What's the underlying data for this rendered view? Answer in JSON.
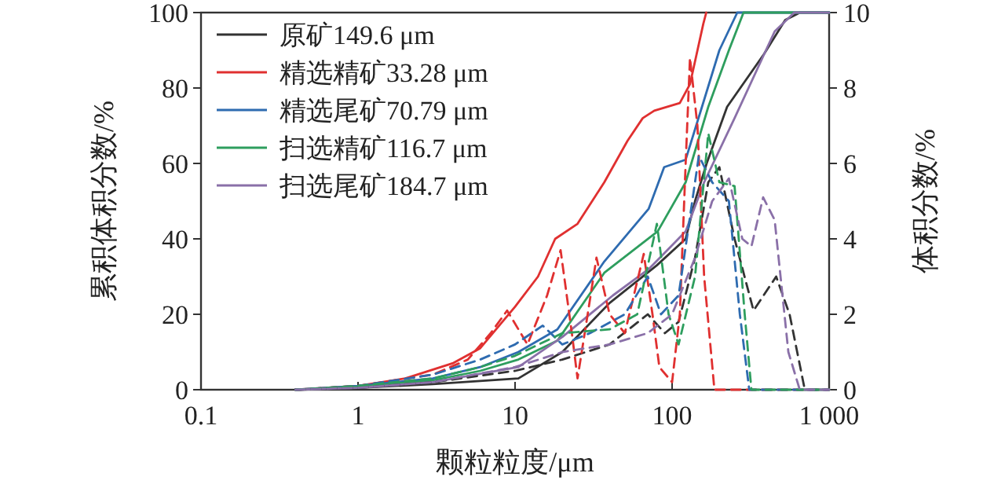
{
  "chart_data": {
    "type": "line",
    "xlabel": "颗粒粒度/μm",
    "ylabel": "累积体积分数/%",
    "y2label": "体积分数/%",
    "log": "x",
    "xlim": [
      0.1,
      1000
    ],
    "xticks": [
      0.1,
      1,
      10,
      100,
      {
        "value": 1000,
        "label": "1 000"
      }
    ],
    "ylim": [
      0,
      100
    ],
    "yticks": [
      0,
      20,
      40,
      60,
      80,
      100
    ],
    "y2lim": [
      0,
      10
    ],
    "y2ticks": [
      0,
      2,
      4,
      6,
      8,
      10
    ],
    "grid": false,
    "legend": "top left",
    "marker": "none",
    "series": [
      {
        "name": "原矿149.6 μm",
        "color": "#333333",
        "line_style": "solid",
        "x": [
          0.4,
          1,
          3,
          10.5,
          20,
          40,
          80,
          122,
          140,
          166,
          224,
          385,
          525,
          650,
          1000
        ],
        "values": [
          0,
          0.5,
          1.5,
          3,
          10,
          23,
          33,
          40,
          50,
          60,
          75,
          89,
          98,
          100,
          100
        ]
      },
      {
        "name": "精选精矿33.28 μm",
        "color": "#e03030",
        "line_style": "solid",
        "x": [
          0.4,
          1,
          2,
          4,
          6,
          10,
          14,
          18,
          25,
          37,
          52,
          65,
          77,
          112,
          130,
          158,
          165
        ],
        "values": [
          0,
          1,
          3,
          7,
          11,
          22,
          30,
          40,
          44,
          55,
          66,
          72,
          74,
          76,
          81,
          97,
          100
        ]
      },
      {
        "name": "精选尾矿70.79 μm",
        "color": "#2e6bb0",
        "line_style": "solid",
        "x": [
          0.4,
          1,
          3,
          6,
          10.5,
          18.6,
          37,
          71,
          89,
          122,
          155,
          200,
          260,
          1000
        ],
        "values": [
          0,
          1,
          3,
          6,
          10,
          16,
          34,
          48,
          59,
          61,
          75,
          90,
          100,
          100
        ]
      },
      {
        "name": "扫选精矿116.7 μm",
        "color": "#2e9e5e",
        "line_style": "solid",
        "x": [
          0.4,
          1,
          3,
          6,
          10.5,
          18.6,
          37,
          81,
          122,
          170,
          230,
          285,
          1000
        ],
        "values": [
          0,
          0.8,
          2.5,
          5,
          8,
          13,
          31,
          42,
          55,
          75,
          90,
          100,
          100
        ]
      },
      {
        "name": "扫选尾矿184.7 μm",
        "color": "#8a70a8",
        "line_style": "solid",
        "x": [
          0.4,
          1,
          3,
          10.5,
          20,
          42,
          71,
          122,
          160,
          250,
          450,
          600,
          1000
        ],
        "values": [
          0,
          0.5,
          2,
          6,
          14,
          25,
          32,
          42,
          55,
          72,
          95,
          100,
          100
        ]
      },
      {
        "color": "#333333",
        "line_style": "dashed",
        "axis": "y2",
        "x": [
          0.4,
          1,
          3,
          10,
          20,
          40,
          70,
          90,
          110,
          140,
          170,
          200,
          250,
          330,
          460,
          560,
          700,
          1000
        ],
        "values": [
          0,
          0.05,
          0.2,
          0.5,
          0.8,
          1.2,
          2.0,
          1.5,
          1.8,
          3.5,
          5.5,
          5.9,
          4,
          2.1,
          3.0,
          2,
          0,
          0
        ]
      },
      {
        "color": "#e03030",
        "line_style": "dashed",
        "axis": "y2",
        "x": [
          0.4,
          1,
          3,
          5,
          7,
          8.9,
          12,
          16,
          19.5,
          23,
          25,
          29,
          33,
          40,
          50,
          66,
          75,
          83,
          100,
          112,
          122,
          130,
          145,
          160,
          186,
          1000
        ],
        "values": [
          0,
          0.1,
          0.4,
          0.8,
          1.5,
          2.1,
          1.2,
          2.5,
          3.7,
          1.5,
          0.3,
          2,
          3.5,
          2,
          1.5,
          3.6,
          2,
          0.6,
          0.2,
          2,
          6,
          8.8,
          7,
          3,
          0,
          0
        ]
      },
      {
        "color": "#2e6bb0",
        "line_style": "dashed",
        "axis": "y2",
        "x": [
          0.4,
          1,
          3,
          6,
          10,
          15,
          20,
          30,
          50,
          70,
          85,
          110,
          148,
          180,
          230,
          270,
          310,
          1000
        ],
        "values": [
          0,
          0.1,
          0.4,
          0.8,
          1.2,
          1.7,
          1.2,
          1.5,
          2.0,
          3.0,
          2.0,
          2.5,
          6.2,
          5.5,
          5.0,
          2,
          0,
          0
        ]
      },
      {
        "color": "#2e9e5e",
        "line_style": "dashed",
        "axis": "y2",
        "x": [
          0.4,
          1,
          3,
          6,
          10,
          20,
          40,
          60,
          80,
          95,
          110,
          140,
          170,
          200,
          250,
          290,
          320,
          1000
        ],
        "values": [
          0,
          0.1,
          0.3,
          0.6,
          0.9,
          1.5,
          1.6,
          2.0,
          4.4,
          2.0,
          1.2,
          3,
          6.8,
          5.5,
          5.4,
          2,
          0,
          0
        ]
      },
      {
        "color": "#8a70a8",
        "line_style": "dashed",
        "axis": "y2",
        "x": [
          0.4,
          1,
          3,
          10,
          20,
          40,
          70,
          100,
          140,
          180,
          230,
          280,
          320,
          380,
          450,
          550,
          650,
          1000
        ],
        "values": [
          0,
          0.05,
          0.2,
          0.6,
          1.0,
          1.2,
          1.5,
          2.0,
          3.5,
          5.0,
          5.6,
          4,
          3.8,
          5.1,
          4.5,
          1,
          0,
          0
        ]
      }
    ]
  }
}
